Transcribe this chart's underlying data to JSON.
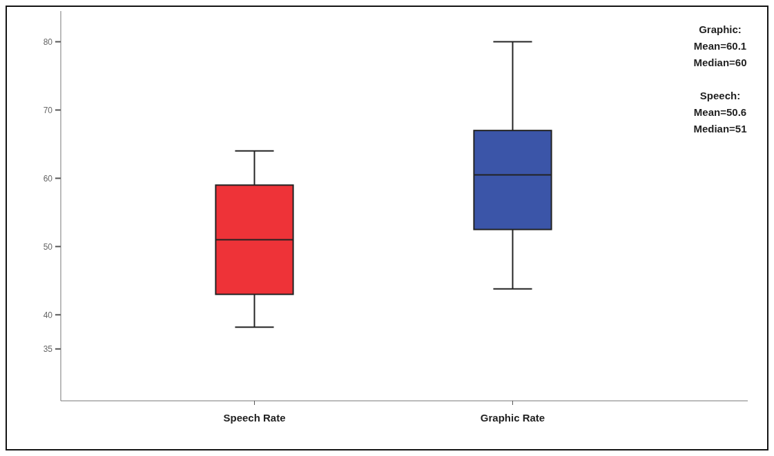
{
  "chart_data": {
    "type": "box",
    "categories": [
      "Speech Rate",
      "Graphic Rate"
    ],
    "boxes": [
      {
        "low": 38.2,
        "q1": 43,
        "median": 51,
        "q3": 59,
        "high": 64
      },
      {
        "low": 43.8,
        "q1": 52.5,
        "median": 60.5,
        "q3": 67,
        "high": 80
      }
    ],
    "colors": [
      "#ee3338",
      "#3b55a8"
    ],
    "ylim": [
      27.4,
      84.5
    ],
    "yticks": [
      35,
      40,
      50,
      60,
      70,
      80
    ],
    "grid": false,
    "annotations": [
      "Graphic:\nMean=60.1\nMedian=60",
      "Speech:\nMean=50.6\nMedian=51"
    ]
  }
}
